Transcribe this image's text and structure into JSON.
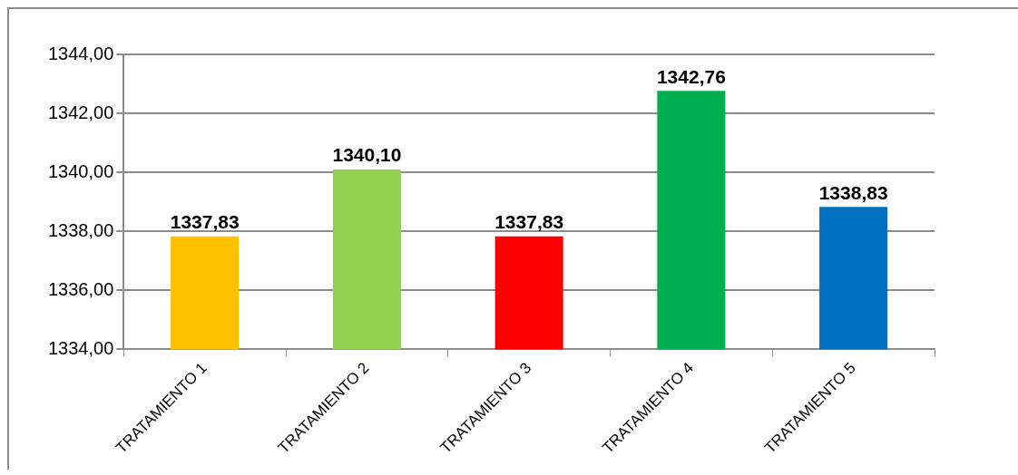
{
  "chart_data": {
    "type": "bar",
    "categories": [
      "TRATAMIENTO 1",
      "TRATAMIENTO 2",
      "TRATAMIENTO 3",
      "TRATAMIENTO 4",
      "TRATAMIENTO 5"
    ],
    "values": [
      1337.83,
      1340.1,
      1337.83,
      1342.76,
      1338.83
    ],
    "colors": [
      "#ffc000",
      "#92d050",
      "#ff0000",
      "#00b050",
      "#0070c0"
    ],
    "value_labels": [
      "1337,83",
      "1340,10",
      "1337,83",
      "1342,76",
      "1338,83"
    ],
    "ylim": [
      1334,
      1344
    ],
    "yticks": [
      {
        "value": 1334,
        "label": "1334,00"
      },
      {
        "value": 1336,
        "label": "1336,00"
      },
      {
        "value": 1338,
        "label": "1338,00"
      },
      {
        "value": 1340,
        "label": "1340,00"
      },
      {
        "value": 1342,
        "label": "1342,00"
      },
      {
        "value": 1344,
        "label": "1344,00"
      }
    ],
    "grid": "y",
    "legend": false
  }
}
